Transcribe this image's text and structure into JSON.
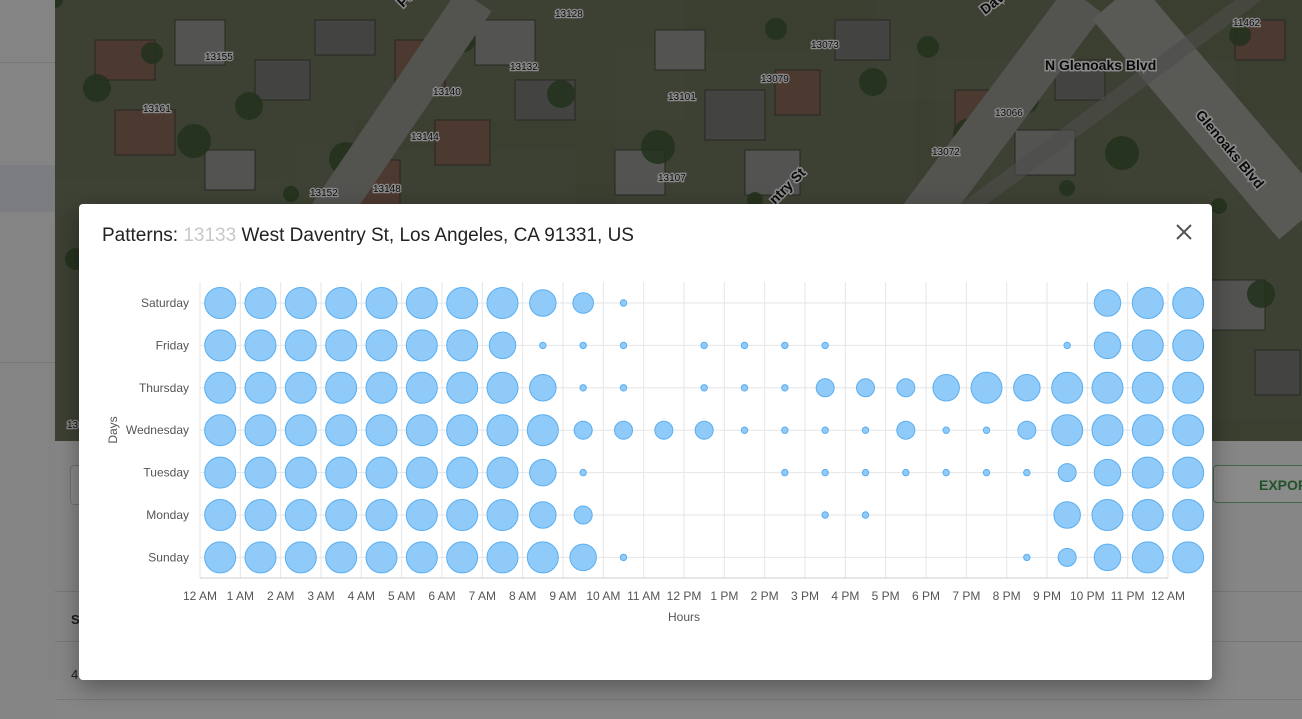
{
  "modal": {
    "title_prefix": "Patterns: ",
    "title_masked": "13133",
    "title_address": " West Daventry St, Los Angeles, CA 91331, US"
  },
  "background": {
    "export_label": "EXPOR",
    "table_header_fragment": "S",
    "table_cell_fragment": "4",
    "map_labels": [
      "13155",
      "13161",
      "13128",
      "13132",
      "13140",
      "13144",
      "13148",
      "13152",
      "13101",
      "13107",
      "13073",
      "13079",
      "13066",
      "13072",
      "11462",
      "N Glenoaks Blvd",
      "Glenoaks Blvd",
      "Dave",
      "ntry St",
      "Pa",
      "13"
    ]
  },
  "colors": {
    "bubble_fill": "#90caf9",
    "bubble_stroke": "#5aaef0",
    "grid": "#e6e6e6",
    "axis_text": "#555555"
  },
  "chart_data": {
    "type": "scatter",
    "subtype": "bubble-punchcard",
    "xlabel": "Hours",
    "ylabel": "Days",
    "x_ticks": [
      "12 AM",
      "1 AM",
      "2 AM",
      "3 AM",
      "4 AM",
      "5 AM",
      "6 AM",
      "7 AM",
      "8 AM",
      "9 AM",
      "10 AM",
      "11 AM",
      "12 PM",
      "1 PM",
      "2 PM",
      "3 PM",
      "4 PM",
      "5 PM",
      "6 PM",
      "7 PM",
      "8 PM",
      "9 PM",
      "10 PM",
      "11 PM",
      "12 AM"
    ],
    "days": [
      "Saturday",
      "Friday",
      "Thursday",
      "Wednesday",
      "Tuesday",
      "Monday",
      "Sunday"
    ],
    "grid": true,
    "value_scale_max": 10,
    "series": [
      {
        "day": "Saturday",
        "values": [
          10,
          10,
          10,
          10,
          10,
          10,
          10,
          10,
          7,
          4,
          1,
          0,
          0,
          0,
          0,
          0,
          0,
          0,
          0,
          0,
          0,
          0,
          7,
          10,
          10
        ]
      },
      {
        "day": "Friday",
        "values": [
          10,
          10,
          10,
          10,
          10,
          10,
          10,
          7,
          1,
          1,
          1,
          0,
          1,
          1,
          1,
          1,
          0,
          0,
          0,
          0,
          0,
          1,
          7,
          10,
          10
        ]
      },
      {
        "day": "Thursday",
        "values": [
          10,
          10,
          10,
          10,
          10,
          10,
          10,
          10,
          7,
          1,
          1,
          0,
          1,
          1,
          1,
          3,
          3,
          3,
          7,
          10,
          7,
          10,
          10,
          10,
          10
        ]
      },
      {
        "day": "Wednesday",
        "values": [
          10,
          10,
          10,
          10,
          10,
          10,
          10,
          10,
          10,
          3,
          3,
          3,
          3,
          1,
          1,
          1,
          1,
          3,
          1,
          1,
          3,
          10,
          10,
          10,
          10
        ]
      },
      {
        "day": "Tuesday",
        "values": [
          10,
          10,
          10,
          10,
          10,
          10,
          10,
          10,
          7,
          1,
          0,
          0,
          0,
          0,
          1,
          1,
          1,
          1,
          1,
          1,
          1,
          3,
          7,
          10,
          10
        ]
      },
      {
        "day": "Monday",
        "values": [
          10,
          10,
          10,
          10,
          10,
          10,
          10,
          10,
          7,
          3,
          0,
          0,
          0,
          0,
          0,
          1,
          1,
          0,
          0,
          0,
          0,
          7,
          10,
          10,
          10
        ]
      },
      {
        "day": "Sunday",
        "values": [
          10,
          10,
          10,
          10,
          10,
          10,
          10,
          10,
          10,
          7,
          1,
          0,
          0,
          0,
          0,
          0,
          0,
          0,
          0,
          0,
          1,
          3,
          7,
          10,
          10
        ]
      }
    ]
  }
}
